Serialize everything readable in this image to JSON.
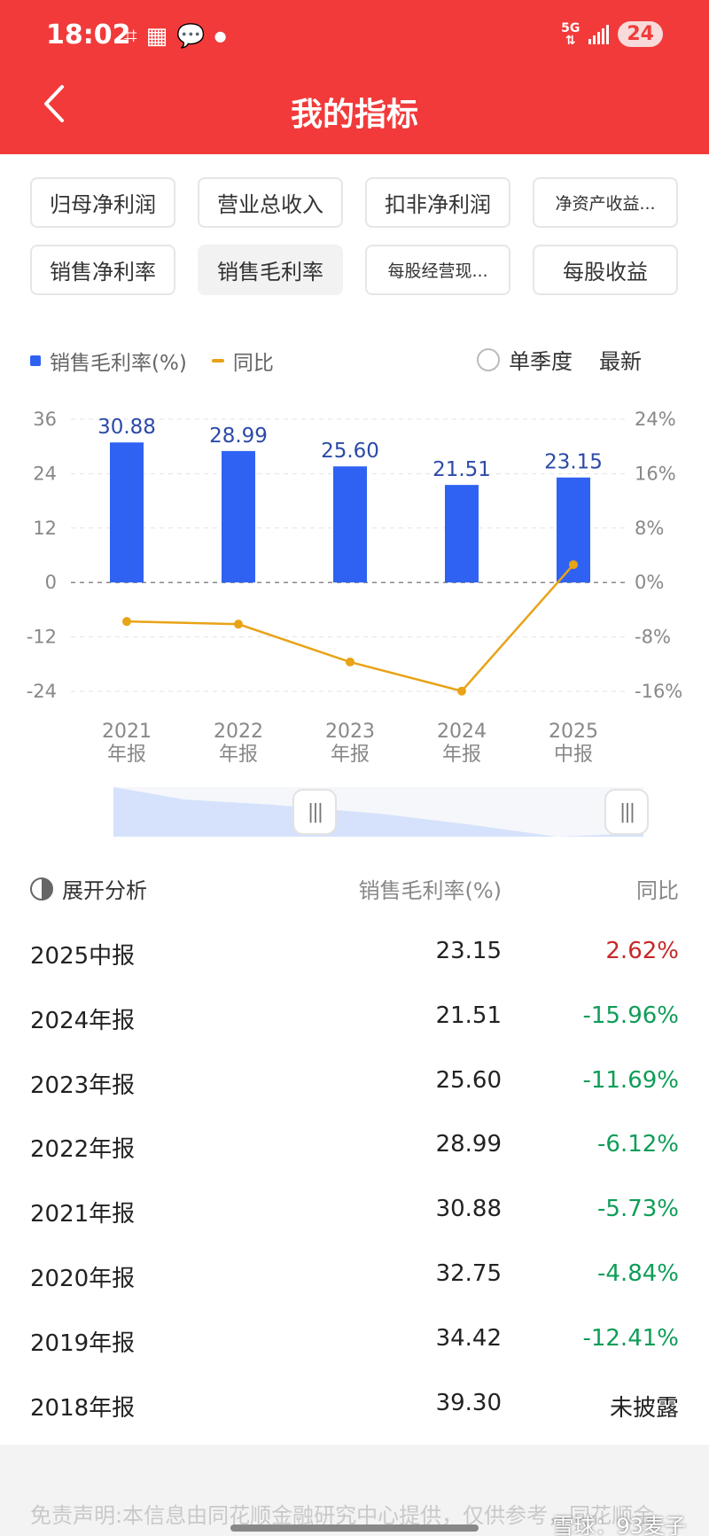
{
  "status_bar": {
    "time": "18:02",
    "network": "5G",
    "battery": "24"
  },
  "header": {
    "title": "我的指标"
  },
  "chips": [
    {
      "label": "归母净利润",
      "active": false,
      "small": false
    },
    {
      "label": "营业总收入",
      "active": false,
      "small": false
    },
    {
      "label": "扣非净利润",
      "active": false,
      "small": false
    },
    {
      "label": "净资产收益...",
      "active": false,
      "small": true
    },
    {
      "label": "销售净利率",
      "active": false,
      "small": false
    },
    {
      "label": "销售毛利率",
      "active": true,
      "small": false
    },
    {
      "label": "每股经营现...",
      "active": false,
      "small": true
    },
    {
      "label": "每股收益",
      "active": false,
      "small": false
    }
  ],
  "legend": {
    "bar_label": "销售毛利率(%)",
    "line_label": "同比",
    "single_quarter": "单季度",
    "latest": "最新"
  },
  "chart_data": {
    "type": "bar",
    "categories": [
      "2021\n年报",
      "2022\n年报",
      "2023\n年报",
      "2024\n年报",
      "2025\n中报"
    ],
    "series": [
      {
        "name": "销售毛利率(%)",
        "type": "bar",
        "values": [
          30.88,
          28.99,
          25.6,
          21.51,
          23.15
        ],
        "color": "#2F62F2",
        "labels": [
          "30.88",
          "28.99",
          "25.60",
          "21.51",
          "23.15"
        ]
      },
      {
        "name": "同比",
        "type": "line",
        "axis": "right",
        "values": [
          -5.73,
          -6.12,
          -11.69,
          -15.96,
          2.62
        ],
        "color": "#E8A317"
      }
    ],
    "y_left": {
      "ticks": [
        "36",
        "24",
        "12",
        "0",
        "-12",
        "-24"
      ],
      "range": [
        -24,
        36
      ]
    },
    "y_right": {
      "ticks": [
        "24%",
        "16%",
        "8%",
        "0%",
        "-8%",
        "-16%"
      ],
      "range": [
        -16,
        24
      ]
    },
    "grid": true
  },
  "table": {
    "header": {
      "col1": "展开分析",
      "col2": "销售毛利率(%)",
      "col3": "同比"
    },
    "rows": [
      {
        "period": "2025中报",
        "value": "23.15",
        "yoy": "2.62%",
        "tone": "pos"
      },
      {
        "period": "2024年报",
        "value": "21.51",
        "yoy": "-15.96%",
        "tone": "neg"
      },
      {
        "period": "2023年报",
        "value": "25.60",
        "yoy": "-11.69%",
        "tone": "neg"
      },
      {
        "period": "2022年报",
        "value": "28.99",
        "yoy": "-6.12%",
        "tone": "neg"
      },
      {
        "period": "2021年报",
        "value": "30.88",
        "yoy": "-5.73%",
        "tone": "neg"
      },
      {
        "period": "2020年报",
        "value": "32.75",
        "yoy": "-4.84%",
        "tone": "neg"
      },
      {
        "period": "2019年报",
        "value": "34.42",
        "yoy": "-12.41%",
        "tone": "neg"
      },
      {
        "period": "2018年报",
        "value": "39.30",
        "yoy": "未披露",
        "tone": "na"
      }
    ]
  },
  "footer": {
    "disclaimer": "免责声明:本信息由同花顺金融研究中心提供，仅供参考，同花顺金",
    "watermark": "雪球：93麦子"
  }
}
